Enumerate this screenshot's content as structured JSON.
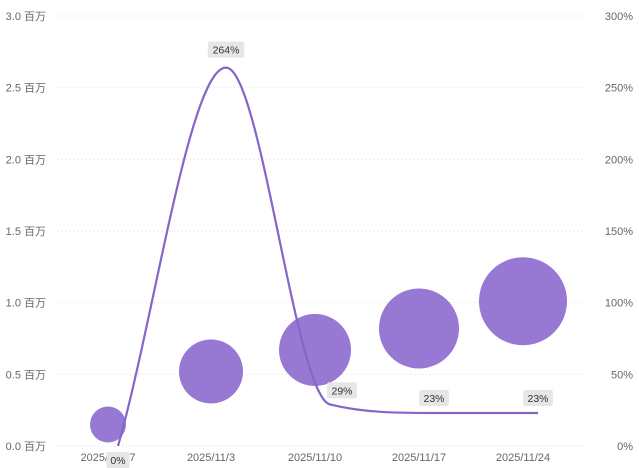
{
  "chart_data": {
    "type": "bubble-line",
    "categories": [
      "2025/10/27",
      "2025/11/3",
      "2025/11/10",
      "2025/11/17",
      "2025/11/24"
    ],
    "bubble_series": {
      "values": [
        0.15,
        0.52,
        0.67,
        0.82,
        1.01
      ],
      "size_values": [
        1,
        2,
        3,
        4,
        5
      ],
      "unit": "百万"
    },
    "line_series": {
      "values": [
        0,
        264,
        29,
        23,
        23
      ],
      "labels": [
        "0%",
        "264%",
        "29%",
        "23%",
        "23%"
      ]
    },
    "y_left": {
      "ticks": [
        0,
        0.5,
        1.0,
        1.5,
        2.0,
        2.5,
        3.0
      ],
      "tick_labels": [
        "0.0 百万",
        "0.5 百万",
        "1.0 百万",
        "1.5 百万",
        "2.0 百万",
        "2.5 百万",
        "3.0 百万"
      ],
      "ylim": [
        0,
        3.0
      ]
    },
    "y_right": {
      "ticks": [
        0,
        50,
        100,
        150,
        200,
        250,
        300
      ],
      "tick_labels": [
        "0%",
        "50%",
        "100%",
        "150%",
        "200%",
        "250%",
        "300%"
      ],
      "ylim": [
        0,
        300
      ]
    },
    "grid": "horizontal dotted",
    "legend": "none"
  },
  "colors": {
    "bubble": "#8e6ccf",
    "line": "#8665c8",
    "grid": "#d9d9d9",
    "label_bg": "#e6e6e6",
    "tick_text": "#666666"
  }
}
